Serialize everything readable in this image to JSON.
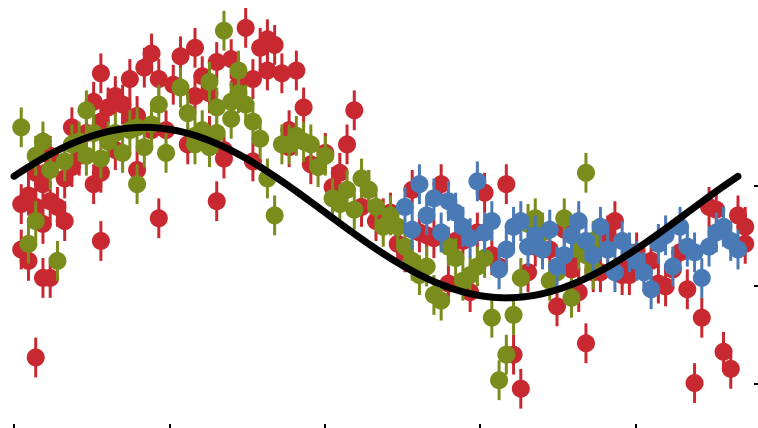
{
  "chart_data": {
    "type": "scatter",
    "title": "",
    "xlabel": "",
    "ylabel": "",
    "xlim": [
      0,
      1.2
    ],
    "ylim": [
      -0.73,
      0.72
    ],
    "grid": false,
    "legend": "none",
    "colors": {
      "red": "#c8282f",
      "green": "#7a8c1c",
      "blue": "#4a7ab5",
      "model": "#000000"
    },
    "model": {
      "kind": "sinusoid",
      "mean": 0.0,
      "amplitude": 0.3,
      "period": 1.0,
      "phase_peak": 0.18
    },
    "series": [
      {
        "color_key": "red",
        "points": [
          [
            0.01,
            0.03
          ],
          [
            0.01,
            -0.13
          ],
          [
            0.02,
            -0.17
          ],
          [
            0.02,
            0.06
          ],
          [
            0.03,
            0.02
          ],
          [
            0.03,
            0.14
          ],
          [
            0.03,
            -0.51
          ],
          [
            0.04,
            0.1
          ],
          [
            0.04,
            -0.04
          ],
          [
            0.04,
            -0.23
          ],
          [
            0.05,
            0.04
          ],
          [
            0.05,
            0.2
          ],
          [
            0.05,
            -0.23
          ],
          [
            0.06,
            0.02
          ],
          [
            0.07,
            -0.03
          ],
          [
            0.07,
            0.12
          ],
          [
            0.08,
            0.16
          ],
          [
            0.08,
            0.3
          ],
          [
            0.09,
            0.22
          ],
          [
            0.09,
            0.2
          ],
          [
            0.1,
            0.28
          ],
          [
            0.11,
            0.39
          ],
          [
            0.11,
            0.1
          ],
          [
            0.12,
            0.32
          ],
          [
            0.12,
            0.49
          ],
          [
            0.12,
            -0.1
          ],
          [
            0.12,
            0.14
          ],
          [
            0.13,
            0.37
          ],
          [
            0.14,
            0.22
          ],
          [
            0.14,
            0.41
          ],
          [
            0.15,
            0.38
          ],
          [
            0.16,
            0.33
          ],
          [
            0.16,
            0.47
          ],
          [
            0.17,
            0.34
          ],
          [
            0.17,
            0.15
          ],
          [
            0.18,
            0.51
          ],
          [
            0.19,
            0.56
          ],
          [
            0.19,
            0.29
          ],
          [
            0.2,
            0.47
          ],
          [
            0.2,
            -0.02
          ],
          [
            0.21,
            0.29
          ],
          [
            0.22,
            0.45
          ],
          [
            0.23,
            0.55
          ],
          [
            0.24,
            0.24
          ],
          [
            0.25,
            0.41
          ],
          [
            0.25,
            0.58
          ],
          [
            0.26,
            0.48
          ],
          [
            0.27,
            0.42
          ],
          [
            0.27,
            0.27
          ],
          [
            0.28,
            0.04
          ],
          [
            0.28,
            0.53
          ],
          [
            0.29,
            0.19
          ],
          [
            0.29,
            0.22
          ],
          [
            0.3,
            0.54
          ],
          [
            0.31,
            0.45
          ],
          [
            0.32,
            0.65
          ],
          [
            0.33,
            0.47
          ],
          [
            0.33,
            0.18
          ],
          [
            0.34,
            0.58
          ],
          [
            0.35,
            0.61
          ],
          [
            0.35,
            0.5
          ],
          [
            0.36,
            0.59
          ],
          [
            0.37,
            0.49
          ],
          [
            0.38,
            0.29
          ],
          [
            0.38,
            0.23
          ],
          [
            0.39,
            0.5
          ],
          [
            0.4,
            0.37
          ],
          [
            0.41,
            0.17
          ],
          [
            0.43,
            0.21
          ],
          [
            0.44,
            0.09
          ],
          [
            0.45,
            0.14
          ],
          [
            0.46,
            0.24
          ],
          [
            0.47,
            0.36
          ],
          [
            0.48,
            0.02
          ],
          [
            0.49,
            0.08
          ],
          [
            0.5,
            -0.03
          ],
          [
            0.51,
            -0.02
          ],
          [
            0.52,
            0.0
          ],
          [
            0.53,
            -0.11
          ],
          [
            0.54,
            -0.14
          ],
          [
            0.55,
            0.08
          ],
          [
            0.56,
            -0.07
          ],
          [
            0.57,
            -0.08
          ],
          [
            0.58,
            -0.09
          ],
          [
            0.59,
            0.1
          ],
          [
            0.6,
            -0.25
          ],
          [
            0.61,
            -0.1
          ],
          [
            0.62,
            -0.1
          ],
          [
            0.63,
            -0.28
          ],
          [
            0.64,
            -0.07
          ],
          [
            0.65,
            0.07
          ],
          [
            0.66,
            -0.15
          ],
          [
            0.67,
            -0.19
          ],
          [
            0.68,
            0.1
          ],
          [
            0.69,
            -0.5
          ],
          [
            0.7,
            -0.62
          ],
          [
            0.71,
            -0.21
          ],
          [
            0.72,
            -0.12
          ],
          [
            0.74,
            -0.13
          ],
          [
            0.75,
            -0.33
          ],
          [
            0.76,
            -0.06
          ],
          [
            0.77,
            -0.2
          ],
          [
            0.77,
            -0.16
          ],
          [
            0.78,
            -0.28
          ],
          [
            0.79,
            -0.46
          ],
          [
            0.8,
            -0.21
          ],
          [
            0.8,
            -0.2
          ],
          [
            0.81,
            -0.21
          ],
          [
            0.82,
            -0.08
          ],
          [
            0.82,
            -0.13
          ],
          [
            0.83,
            -0.03
          ],
          [
            0.84,
            -0.19
          ],
          [
            0.84,
            -0.22
          ],
          [
            0.85,
            -0.22
          ],
          [
            0.86,
            -0.14
          ],
          [
            0.87,
            -0.18
          ],
          [
            0.88,
            -0.17
          ],
          [
            0.89,
            -0.25
          ],
          [
            0.9,
            -0.26
          ],
          [
            0.91,
            -0.2
          ],
          [
            0.92,
            -0.14
          ],
          [
            0.93,
            -0.27
          ],
          [
            0.94,
            -0.6
          ],
          [
            0.95,
            -0.37
          ],
          [
            0.96,
            0.02
          ],
          [
            0.97,
            0.01
          ],
          [
            0.98,
            -0.49
          ],
          [
            0.99,
            -0.55
          ],
          [
            1.0,
            -0.01
          ],
          [
            1.01,
            -0.11
          ],
          [
            1.01,
            -0.05
          ]
        ]
      },
      {
        "color_key": "green",
        "points": [
          [
            0.01,
            0.3
          ],
          [
            0.02,
            -0.11
          ],
          [
            0.03,
            0.2
          ],
          [
            0.03,
            -0.03
          ],
          [
            0.04,
            0.25
          ],
          [
            0.05,
            0.15
          ],
          [
            0.06,
            -0.17
          ],
          [
            0.07,
            0.18
          ],
          [
            0.08,
            0.24
          ],
          [
            0.09,
            0.25
          ],
          [
            0.1,
            0.2
          ],
          [
            0.1,
            0.36
          ],
          [
            0.11,
            0.28
          ],
          [
            0.12,
            0.19
          ],
          [
            0.13,
            0.25
          ],
          [
            0.14,
            0.28
          ],
          [
            0.15,
            0.21
          ],
          [
            0.16,
            0.29
          ],
          [
            0.17,
            0.3
          ],
          [
            0.17,
            0.1
          ],
          [
            0.18,
            0.23
          ],
          [
            0.19,
            0.31
          ],
          [
            0.2,
            0.38
          ],
          [
            0.21,
            0.21
          ],
          [
            0.23,
            0.44
          ],
          [
            0.24,
            0.35
          ],
          [
            0.25,
            0.27
          ],
          [
            0.25,
            0.24
          ],
          [
            0.26,
            0.29
          ],
          [
            0.27,
            0.46
          ],
          [
            0.27,
            0.23
          ],
          [
            0.28,
            0.37
          ],
          [
            0.28,
            0.28
          ],
          [
            0.29,
            0.64
          ],
          [
            0.3,
            0.39
          ],
          [
            0.3,
            0.33
          ],
          [
            0.31,
            0.42
          ],
          [
            0.31,
            0.5
          ],
          [
            0.32,
            0.38
          ],
          [
            0.33,
            0.32
          ],
          [
            0.34,
            0.26
          ],
          [
            0.35,
            0.12
          ],
          [
            0.36,
            -0.01
          ],
          [
            0.37,
            0.24
          ],
          [
            0.38,
            0.24
          ],
          [
            0.39,
            0.27
          ],
          [
            0.4,
            0.25
          ],
          [
            0.41,
            0.24
          ],
          [
            0.42,
            0.16
          ],
          [
            0.43,
            0.2
          ],
          [
            0.44,
            0.05
          ],
          [
            0.45,
            0.03
          ],
          [
            0.46,
            0.08
          ],
          [
            0.47,
            0.01
          ],
          [
            0.48,
            0.12
          ],
          [
            0.49,
            0.08
          ],
          [
            0.5,
            0.02
          ],
          [
            0.51,
            -0.05
          ],
          [
            0.52,
            -0.01
          ],
          [
            0.53,
            -0.05
          ],
          [
            0.54,
            -0.12
          ],
          [
            0.55,
            -0.17
          ],
          [
            0.56,
            -0.22
          ],
          [
            0.57,
            -0.19
          ],
          [
            0.58,
            -0.29
          ],
          [
            0.59,
            -0.31
          ],
          [
            0.6,
            -0.12
          ],
          [
            0.61,
            -0.16
          ],
          [
            0.62,
            -0.24
          ],
          [
            0.63,
            -0.22
          ],
          [
            0.64,
            -0.19
          ],
          [
            0.65,
            -0.16
          ],
          [
            0.66,
            -0.37
          ],
          [
            0.67,
            -0.59
          ],
          [
            0.68,
            -0.5
          ],
          [
            0.69,
            -0.36
          ],
          [
            0.7,
            -0.23
          ],
          [
            0.71,
            -0.04
          ],
          [
            0.72,
            -0.02
          ],
          [
            0.73,
            -0.07
          ],
          [
            0.74,
            -0.24
          ],
          [
            0.75,
            -0.21
          ],
          [
            0.76,
            -0.02
          ],
          [
            0.77,
            -0.3
          ],
          [
            0.78,
            -0.13
          ],
          [
            0.79,
            0.14
          ],
          [
            0.79,
            -0.15
          ],
          [
            0.8,
            -0.1
          ],
          [
            0.8,
            -0.2
          ]
        ]
      },
      {
        "color_key": "blue",
        "points": [
          [
            0.54,
            0.02
          ],
          [
            0.55,
            -0.06
          ],
          [
            0.56,
            0.1
          ],
          [
            0.57,
            -0.01
          ],
          [
            0.58,
            0.05
          ],
          [
            0.59,
            -0.07
          ],
          [
            0.6,
            0.04
          ],
          [
            0.61,
            0.0
          ],
          [
            0.62,
            -0.05
          ],
          [
            0.63,
            -0.09
          ],
          [
            0.64,
            0.11
          ],
          [
            0.65,
            -0.07
          ],
          [
            0.66,
            -0.03
          ],
          [
            0.67,
            -0.2
          ],
          [
            0.68,
            -0.13
          ],
          [
            0.69,
            -0.05
          ],
          [
            0.7,
            -0.03
          ],
          [
            0.71,
            -0.12
          ],
          [
            0.72,
            -0.08
          ],
          [
            0.73,
            -0.13
          ],
          [
            0.74,
            -0.06
          ],
          [
            0.75,
            -0.19
          ],
          [
            0.76,
            -0.15
          ],
          [
            0.77,
            -0.08
          ],
          [
            0.78,
            -0.03
          ],
          [
            0.79,
            -0.1
          ],
          [
            0.8,
            -0.15
          ],
          [
            0.81,
            -0.05
          ],
          [
            0.82,
            -0.13
          ],
          [
            0.83,
            -0.21
          ],
          [
            0.84,
            -0.1
          ],
          [
            0.85,
            -0.14
          ],
          [
            0.86,
            -0.17
          ],
          [
            0.87,
            -0.21
          ],
          [
            0.88,
            -0.27
          ],
          [
            0.89,
            -0.11
          ],
          [
            0.9,
            -0.08
          ],
          [
            0.91,
            -0.19
          ],
          [
            0.92,
            -0.05
          ],
          [
            0.93,
            -0.12
          ],
          [
            0.94,
            -0.14
          ],
          [
            0.95,
            -0.23
          ],
          [
            0.96,
            -0.12
          ],
          [
            0.97,
            -0.07
          ],
          [
            0.98,
            -0.05
          ],
          [
            0.99,
            -0.1
          ],
          [
            1.0,
            -0.13
          ]
        ]
      }
    ]
  }
}
